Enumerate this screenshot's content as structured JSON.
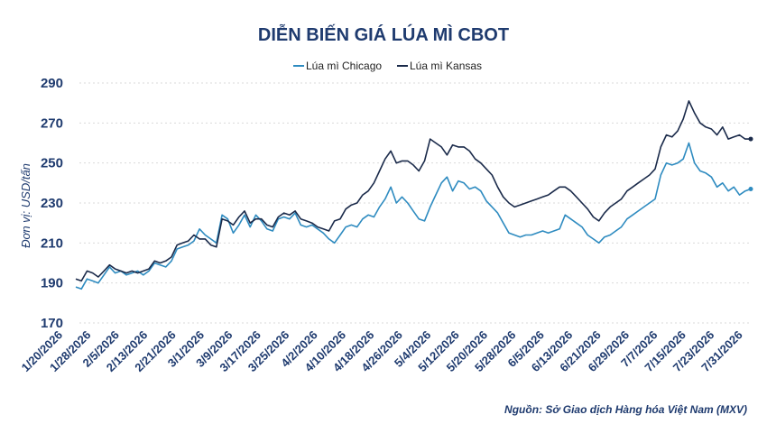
{
  "chart_data": {
    "type": "line",
    "title": "DIỄN BIẾN GIÁ LÚA MÌ CBOT",
    "ylabel": "Đơn vị: USD/tấn",
    "xlabel": "",
    "ylim": [
      170,
      290
    ],
    "yticks": [
      "170",
      "190",
      "210",
      "230",
      "250",
      "270",
      "290"
    ],
    "grid": true,
    "legend_position": "top-center",
    "source": "Nguồn: Sở Giao dịch Hàng hóa Việt Nam (MXV)",
    "x_tick_labels": [
      "1/20/2026",
      "1/28/2026",
      "2/5/2026",
      "2/13/2026",
      "2/21/2026",
      "3/1/2026",
      "3/9/2026",
      "3/17/2026",
      "3/25/2026",
      "4/2/2026",
      "4/10/2026",
      "4/18/2026",
      "4/26/2026",
      "5/4/2026",
      "5/12/2026",
      "5/20/2026",
      "5/28/2026",
      "6/5/2026",
      "6/13/2026",
      "6/21/2026",
      "6/29/2026",
      "7/7/2026",
      "7/15/2026",
      "7/23/2026",
      "7/31/2026"
    ],
    "x_start": "1/20/2026",
    "x_end": "8/6/2026",
    "series": [
      {
        "name": "Lúa mì Chicago",
        "color": "#2e8bc0",
        "values": [
          188,
          187,
          192,
          191,
          190,
          194,
          198,
          195,
          196,
          194,
          195,
          196,
          194,
          196,
          200,
          199,
          198,
          201,
          207,
          208,
          209,
          211,
          217,
          214,
          212,
          210,
          224,
          222,
          215,
          219,
          224,
          218,
          224,
          221,
          217,
          216,
          222,
          223,
          222,
          225,
          219,
          218,
          219,
          217,
          215,
          212,
          210,
          214,
          218,
          219,
          218,
          222,
          224,
          223,
          228,
          232,
          238,
          230,
          233,
          230,
          226,
          222,
          221,
          228,
          234,
          240,
          243,
          236,
          241,
          240,
          237,
          238,
          236,
          231,
          228,
          225,
          220,
          215,
          214,
          213,
          214,
          214,
          215,
          216,
          215,
          216,
          217,
          224,
          222,
          220,
          218,
          214,
          212,
          210,
          213,
          214,
          216,
          218,
          222,
          224,
          226,
          228,
          230,
          232,
          244,
          250,
          249,
          250,
          252,
          260,
          250,
          246,
          245,
          243,
          238,
          240,
          236,
          238,
          234,
          236,
          237
        ]
      },
      {
        "name": "Lúa mì Kansas",
        "color": "#1a2a4a",
        "values": [
          192,
          191,
          196,
          195,
          193,
          196,
          199,
          197,
          196,
          195,
          196,
          195,
          196,
          197,
          201,
          200,
          201,
          203,
          209,
          210,
          211,
          214,
          212,
          212,
          209,
          208,
          222,
          221,
          219,
          223,
          226,
          220,
          222,
          222,
          219,
          218,
          223,
          225,
          224,
          226,
          222,
          221,
          220,
          218,
          217,
          216,
          221,
          222,
          227,
          229,
          230,
          234,
          236,
          240,
          246,
          252,
          256,
          250,
          251,
          251,
          249,
          246,
          251,
          262,
          260,
          258,
          254,
          259,
          258,
          258,
          256,
          252,
          250,
          247,
          244,
          238,
          233,
          230,
          228,
          229,
          230,
          231,
          232,
          233,
          234,
          236,
          238,
          238,
          236,
          233,
          230,
          227,
          223,
          221,
          225,
          228,
          230,
          232,
          236,
          238,
          240,
          242,
          244,
          247,
          258,
          264,
          263,
          266,
          272,
          281,
          275,
          270,
          268,
          267,
          264,
          268,
          262,
          263,
          264,
          262,
          262
        ]
      }
    ]
  }
}
